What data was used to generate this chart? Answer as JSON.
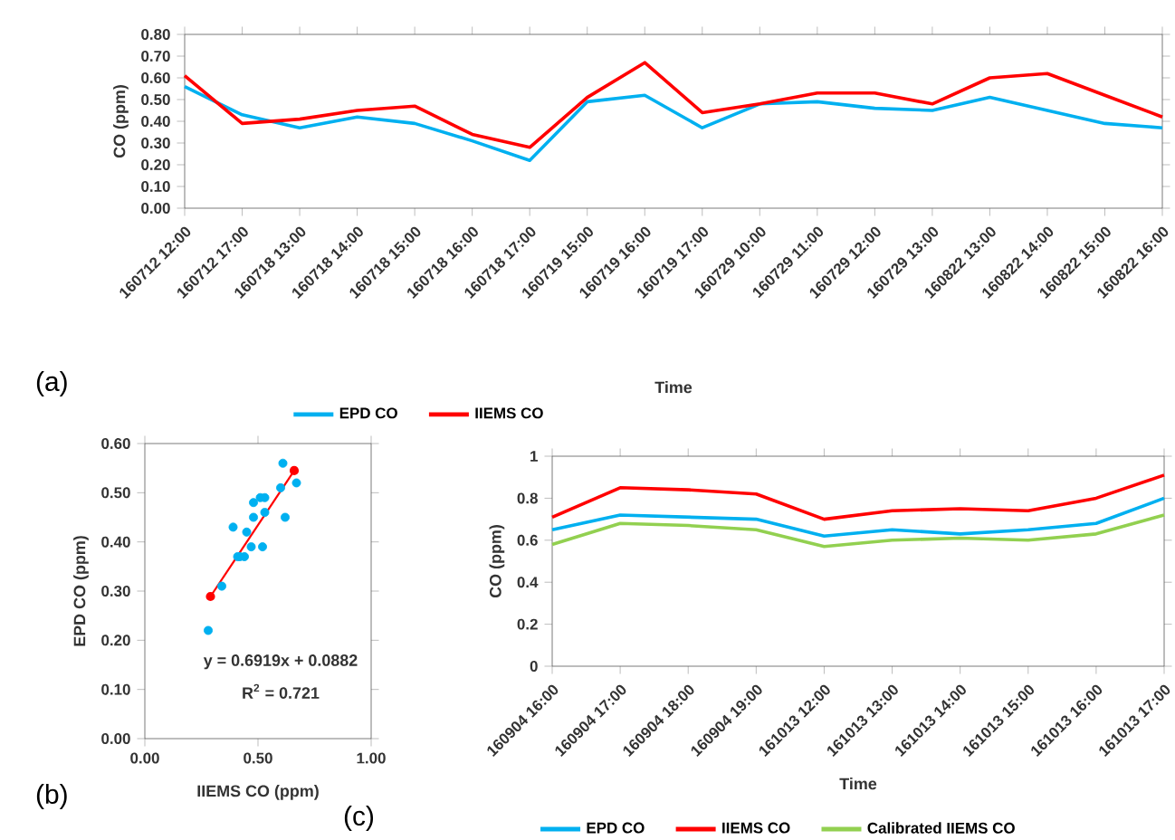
{
  "chart_data": [
    {
      "type": "line",
      "xlabel": "Time",
      "ylabel": "CO (ppm)",
      "annotations": [
        "(a)"
      ],
      "categories": [
        "160712 12:00",
        "160712 17:00",
        "160718 13:00",
        "160718 14:00",
        "160718 15:00",
        "160718 16:00",
        "160718 17:00",
        "160719 15:00",
        "160719 16:00",
        "160719 17:00",
        "160729 10:00",
        "160729 11:00",
        "160729 12:00",
        "160729 13:00",
        "160822 13:00",
        "160822 14:00",
        "160822 15:00",
        "160822 16:00"
      ],
      "ylim": [
        0,
        0.8
      ],
      "yticks": [
        {
          "value": 0,
          "label": "0.00"
        },
        {
          "value": 0.1,
          "label": "0.10"
        },
        {
          "value": 0.2,
          "label": "0.20"
        },
        {
          "value": 0.3,
          "label": "0.30"
        },
        {
          "value": 0.4,
          "label": "0.40"
        },
        {
          "value": 0.5,
          "label": "0.50"
        },
        {
          "value": 0.6,
          "label": "0.60"
        },
        {
          "value": 0.7,
          "label": "0.70"
        },
        {
          "value": 0.8,
          "label": "0.80"
        }
      ],
      "legend": "bottom",
      "marker": "none",
      "series": [
        {
          "name": "EPD CO",
          "color": "#00b0f0",
          "values": [
            0.56,
            0.43,
            0.37,
            0.42,
            0.39,
            0.31,
            0.22,
            0.49,
            0.52,
            0.37,
            0.48,
            0.49,
            0.46,
            0.45,
            0.51,
            0.45,
            0.39,
            0.37
          ]
        },
        {
          "name": "IIEMS CO",
          "color": "#ff0000",
          "values": [
            0.61,
            0.39,
            0.41,
            0.45,
            0.47,
            0.34,
            0.28,
            0.51,
            0.67,
            0.44,
            0.48,
            0.53,
            0.53,
            0.48,
            0.6,
            0.62,
            0.52,
            0.42
          ]
        }
      ]
    },
    {
      "type": "scatter",
      "xlabel": "IIEMS CO (ppm)",
      "ylabel": "EPD CO (ppm)",
      "annotations": [
        "(b)",
        "y = 0.6919x + 0.0882",
        "R$^{2}$ = 0.721"
      ],
      "xlim": [
        0,
        1
      ],
      "xticks": [
        {
          "value": 0,
          "label": "0.00"
        },
        {
          "value": 0.5,
          "label": "0.50"
        },
        {
          "value": 1,
          "label": "1.00"
        }
      ],
      "ylim": [
        0,
        0.6
      ],
      "yticks": [
        {
          "value": 0,
          "label": "0.00"
        },
        {
          "value": 0.1,
          "label": "0.10"
        },
        {
          "value": 0.2,
          "label": "0.20"
        },
        {
          "value": 0.3,
          "label": "0.30"
        },
        {
          "value": 0.4,
          "label": "0.40"
        },
        {
          "value": 0.5,
          "label": "0.50"
        },
        {
          "value": 0.6,
          "label": "0.60"
        }
      ],
      "marker": "circle",
      "series": [
        {
          "color": "#00b0f0",
          "x": [
            0.61,
            0.39,
            0.41,
            0.45,
            0.47,
            0.34,
            0.28,
            0.51,
            0.67,
            0.44,
            0.48,
            0.53,
            0.53,
            0.48,
            0.6,
            0.62,
            0.52,
            0.42
          ],
          "values": [
            0.56,
            0.43,
            0.37,
            0.42,
            0.39,
            0.31,
            0.22,
            0.49,
            0.52,
            0.37,
            0.48,
            0.49,
            0.46,
            0.45,
            0.51,
            0.45,
            0.39,
            0.37
          ]
        },
        {
          "type": "line",
          "color": "#ff0000",
          "x": [
            0.29,
            0.66
          ],
          "values": [
            0.289,
            0.545
          ]
        }
      ]
    },
    {
      "type": "line",
      "xlabel": "Time",
      "ylabel": "CO (ppm)",
      "annotations": [
        "(c)"
      ],
      "categories": [
        "160904 16:00",
        "160904 17:00",
        "160904 18:00",
        "160904 19:00",
        "161013 12:00",
        "161013 13:00",
        "161013 14:00",
        "161013 15:00",
        "161013 16:00",
        "161013 17:00"
      ],
      "ylim": [
        0,
        1
      ],
      "yticks": [
        0,
        0.2,
        0.4,
        0.6,
        0.8,
        1
      ],
      "legend": "bottom",
      "marker": "none",
      "series": [
        {
          "name": "EPD CO",
          "color": "#00b0f0",
          "values": [
            0.65,
            0.72,
            0.71,
            0.7,
            0.62,
            0.65,
            0.63,
            0.65,
            0.68,
            0.8
          ]
        },
        {
          "name": "IIEMS CO",
          "color": "#ff0000",
          "values": [
            0.71,
            0.85,
            0.84,
            0.82,
            0.7,
            0.74,
            0.75,
            0.74,
            0.8,
            0.91
          ]
        },
        {
          "name": "Calibrated IIEMS CO",
          "color": "#92d050",
          "values": [
            0.58,
            0.68,
            0.67,
            0.65,
            0.57,
            0.6,
            0.61,
            0.6,
            0.63,
            0.72
          ]
        }
      ]
    }
  ]
}
